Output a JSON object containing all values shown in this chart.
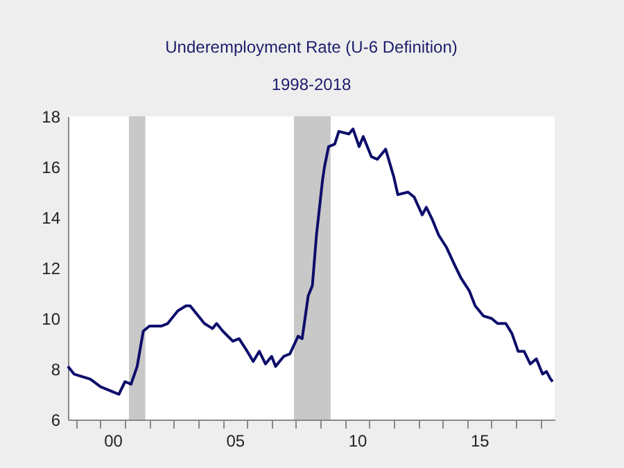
{
  "chart_data": {
    "type": "line",
    "title": "Underemployment Rate (U-6 Definition)",
    "subtitle": "1998-2018",
    "x": [
      "1998-09",
      "1998-12",
      "1999-08",
      "2000-01",
      "2000-07",
      "2000-10",
      "2001-01",
      "2001-04",
      "2001-07",
      "2001-10",
      "2002-01",
      "2002-07",
      "2002-10",
      "2003-03",
      "2003-07",
      "2003-09",
      "2004-01",
      "2004-04",
      "2004-08",
      "2004-10",
      "2005-01",
      "2005-06",
      "2005-09",
      "2006-01",
      "2006-04",
      "2006-07",
      "2006-10",
      "2007-01",
      "2007-03",
      "2007-07",
      "2007-10",
      "2008-02",
      "2008-04",
      "2008-07",
      "2008-09",
      "2008-11",
      "2009-02",
      "2009-03",
      "2009-05",
      "2009-08",
      "2009-10",
      "2010-03",
      "2010-05",
      "2010-08",
      "2010-10",
      "2011-02",
      "2011-05",
      "2011-09",
      "2012-01",
      "2012-03",
      "2012-08",
      "2012-11",
      "2013-03",
      "2013-05",
      "2013-08",
      "2013-11",
      "2014-03",
      "2014-07",
      "2014-10",
      "2015-02",
      "2015-05",
      "2015-09",
      "2016-01",
      "2016-04",
      "2016-08",
      "2016-11",
      "2017-02",
      "2017-05",
      "2017-08",
      "2017-11",
      "2018-02",
      "2018-04",
      "2018-06",
      "2018-07"
    ],
    "series": [
      {
        "color": "#0d0d6b",
        "values": [
          8.1,
          7.8,
          7.6,
          7.3,
          7.1,
          7.0,
          7.5,
          7.4,
          8.1,
          9.5,
          9.7,
          9.7,
          9.8,
          10.3,
          10.5,
          10.5,
          10.1,
          9.8,
          9.6,
          9.8,
          9.5,
          9.1,
          9.2,
          8.7,
          8.3,
          8.7,
          8.2,
          8.5,
          8.1,
          8.5,
          8.6,
          9.3,
          9.2,
          10.9,
          11.3,
          13.3,
          15.5,
          16.0,
          16.8,
          16.9,
          17.4,
          17.3,
          17.5,
          16.8,
          17.2,
          16.4,
          16.3,
          16.7,
          15.6,
          14.9,
          15.0,
          14.8,
          14.1,
          14.4,
          13.9,
          13.3,
          12.8,
          12.1,
          11.6,
          11.1,
          10.5,
          10.1,
          10.0,
          9.8,
          9.8,
          9.4,
          8.7,
          8.7,
          8.2,
          8.4,
          7.8,
          7.9,
          7.6,
          7.5
        ]
      }
    ],
    "xlim": [
      "1998-09",
      "2018-08"
    ],
    "xticks": [
      {
        "value": "1999-01",
        "label": null
      },
      {
        "value": "2000-01",
        "label": null
      },
      {
        "value": "2000-07",
        "label": "00"
      },
      {
        "value": "2001-01",
        "label": null
      },
      {
        "value": "2002-01",
        "label": null
      },
      {
        "value": "2003-01",
        "label": null
      },
      {
        "value": "2004-01",
        "label": null
      },
      {
        "value": "2005-01",
        "label": null
      },
      {
        "value": "2005-07",
        "label": "05"
      },
      {
        "value": "2006-01",
        "label": null
      },
      {
        "value": "2007-01",
        "label": null
      },
      {
        "value": "2008-01",
        "label": null
      },
      {
        "value": "2009-01",
        "label": null
      },
      {
        "value": "2010-01",
        "label": null
      },
      {
        "value": "2010-07",
        "label": "10"
      },
      {
        "value": "2011-01",
        "label": null
      },
      {
        "value": "2012-01",
        "label": null
      },
      {
        "value": "2013-01",
        "label": null
      },
      {
        "value": "2014-01",
        "label": null
      },
      {
        "value": "2015-01",
        "label": null
      },
      {
        "value": "2015-07",
        "label": "15"
      },
      {
        "value": "2016-01",
        "label": null
      },
      {
        "value": "2017-01",
        "label": null
      },
      {
        "value": "2018-01",
        "label": null
      }
    ],
    "ylim": [
      6,
      18
    ],
    "yticks": [
      6,
      8,
      10,
      12,
      14,
      16,
      18
    ],
    "bands": [
      {
        "axis": "x",
        "from": "2001-03",
        "to": "2001-11",
        "color": "#c8c8c8"
      },
      {
        "axis": "x",
        "from": "2007-12",
        "to": "2009-06",
        "color": "#c8c8c8"
      }
    ],
    "line_style": "solid",
    "marker": "none"
  }
}
